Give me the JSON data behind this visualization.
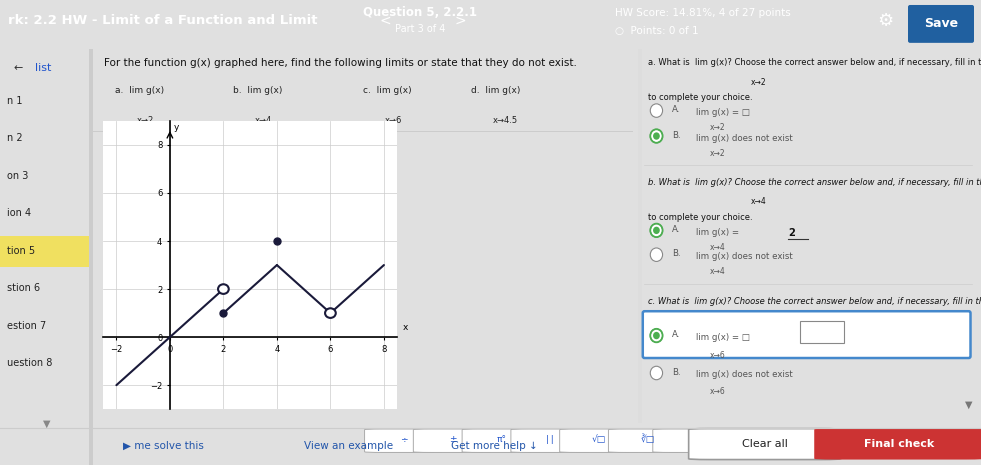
{
  "header_bg": "#4a8ec2",
  "header_title": "rk: 2.2 HW - Limit of a Function and Limit",
  "header_question": "Question 5, 2.2.1",
  "header_part": "Part 3 of 4",
  "header_score": "HW Score: 14.81%, 4 of 27 points",
  "header_points": "○  Points: 0 of 1",
  "sidebar_bg": "#f0f0f0",
  "sidebar_items": [
    "list",
    "n 1",
    "n 2",
    "on 3",
    "ion 4",
    "tion 5",
    "stion 6",
    "estion 7",
    "uestion 8"
  ],
  "sidebar_highlight": "tion 5",
  "main_bg": "#ffffff",
  "problem_text": "For the function g(x) graphed here, find the following limits or state that they do not exist.",
  "graph_xlim": [
    -2.5,
    8.5
  ],
  "graph_ylim": [
    -3.0,
    9.0
  ],
  "graph_segments": [
    {
      "x": [
        -2,
        2
      ],
      "y": [
        -2,
        2
      ]
    },
    {
      "x": [
        2,
        4
      ],
      "y": [
        1,
        3
      ]
    },
    {
      "x": [
        4,
        6
      ],
      "y": [
        3,
        1
      ]
    },
    {
      "x": [
        6,
        8
      ],
      "y": [
        1,
        3
      ]
    }
  ],
  "open_circles": [
    [
      2,
      2
    ],
    [
      6,
      1
    ]
  ],
  "closed_circles": [
    [
      2,
      1
    ],
    [
      4,
      4
    ]
  ],
  "right_panel_bg": "#f8f8f8",
  "footer_bg": "#eeeeee",
  "bottom_bar_bg": "#d8d8d8"
}
